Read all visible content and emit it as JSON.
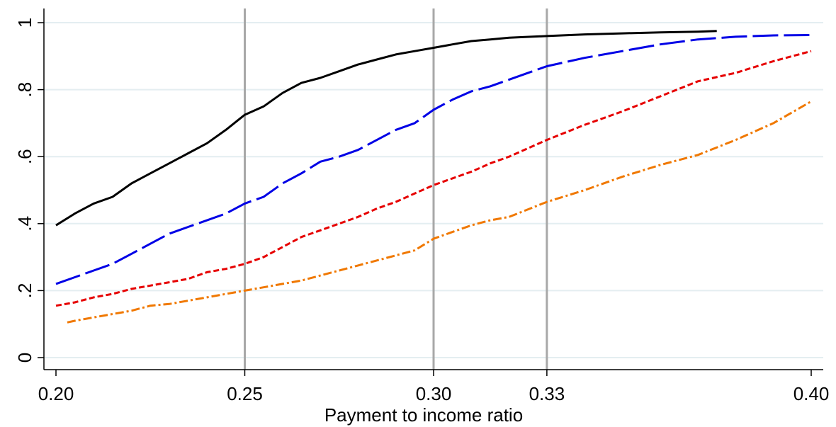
{
  "chart_data": {
    "type": "line",
    "title": "",
    "xlabel": "Payment to income ratio",
    "ylabel": "",
    "xlim": [
      0.2,
      0.4
    ],
    "ylim": [
      0,
      1
    ],
    "x_ticks": [
      {
        "value": 0.2,
        "label": "0.20"
      },
      {
        "value": 0.25,
        "label": "0.25"
      },
      {
        "value": 0.3,
        "label": "0.30"
      },
      {
        "value": 0.33,
        "label": "0.33"
      },
      {
        "value": 0.4,
        "label": "0.40"
      }
    ],
    "y_ticks": [
      {
        "value": 0,
        "label": "0"
      },
      {
        "value": 0.2,
        "label": ".2"
      },
      {
        "value": 0.4,
        "label": ".4"
      },
      {
        "value": 0.6,
        "label": ".6"
      },
      {
        "value": 0.8,
        "label": ".8"
      },
      {
        "value": 1,
        "label": "1"
      }
    ],
    "reference_lines_x": [
      0.25,
      0.3,
      0.33
    ],
    "grid": true,
    "legend": "none",
    "series": [
      {
        "color": "#000000",
        "dash": "solid",
        "x": [
          0.2,
          0.205,
          0.21,
          0.215,
          0.22,
          0.225,
          0.23,
          0.235,
          0.24,
          0.245,
          0.25,
          0.255,
          0.26,
          0.265,
          0.27,
          0.275,
          0.28,
          0.285,
          0.29,
          0.295,
          0.3,
          0.305,
          0.31,
          0.315,
          0.32,
          0.33,
          0.34,
          0.35,
          0.36,
          0.37,
          0.375
        ],
        "y": [
          0.395,
          0.43,
          0.46,
          0.48,
          0.52,
          0.55,
          0.58,
          0.61,
          0.64,
          0.68,
          0.725,
          0.75,
          0.79,
          0.82,
          0.835,
          0.855,
          0.875,
          0.89,
          0.905,
          0.915,
          0.925,
          0.935,
          0.945,
          0.95,
          0.955,
          0.96,
          0.965,
          0.968,
          0.971,
          0.973,
          0.975
        ]
      },
      {
        "color": "#0000e6",
        "dash": "long-dash",
        "x": [
          0.2,
          0.205,
          0.21,
          0.215,
          0.22,
          0.225,
          0.23,
          0.235,
          0.24,
          0.245,
          0.25,
          0.255,
          0.26,
          0.265,
          0.27,
          0.275,
          0.28,
          0.285,
          0.29,
          0.295,
          0.3,
          0.305,
          0.31,
          0.315,
          0.32,
          0.33,
          0.34,
          0.35,
          0.36,
          0.37,
          0.38,
          0.39,
          0.4
        ],
        "y": [
          0.22,
          0.24,
          0.26,
          0.28,
          0.31,
          0.34,
          0.37,
          0.39,
          0.41,
          0.43,
          0.46,
          0.48,
          0.52,
          0.55,
          0.585,
          0.6,
          0.62,
          0.65,
          0.68,
          0.7,
          0.74,
          0.77,
          0.795,
          0.81,
          0.83,
          0.87,
          0.895,
          0.915,
          0.935,
          0.95,
          0.958,
          0.962,
          0.963
        ]
      },
      {
        "color": "#e60000",
        "dash": "short-dash",
        "x": [
          0.2,
          0.205,
          0.21,
          0.215,
          0.22,
          0.225,
          0.23,
          0.235,
          0.24,
          0.245,
          0.25,
          0.255,
          0.26,
          0.265,
          0.27,
          0.275,
          0.28,
          0.285,
          0.29,
          0.295,
          0.3,
          0.305,
          0.31,
          0.315,
          0.32,
          0.33,
          0.34,
          0.35,
          0.36,
          0.37,
          0.38,
          0.39,
          0.4
        ],
        "y": [
          0.155,
          0.165,
          0.18,
          0.19,
          0.205,
          0.215,
          0.225,
          0.235,
          0.255,
          0.265,
          0.28,
          0.3,
          0.33,
          0.36,
          0.38,
          0.4,
          0.42,
          0.445,
          0.465,
          0.49,
          0.515,
          0.535,
          0.555,
          0.58,
          0.6,
          0.65,
          0.695,
          0.735,
          0.78,
          0.825,
          0.85,
          0.885,
          0.915
        ]
      },
      {
        "color": "#f07800",
        "dash": "dash-dot",
        "x": [
          0.203,
          0.205,
          0.21,
          0.215,
          0.22,
          0.225,
          0.23,
          0.235,
          0.24,
          0.245,
          0.25,
          0.255,
          0.26,
          0.265,
          0.27,
          0.275,
          0.28,
          0.285,
          0.29,
          0.295,
          0.3,
          0.305,
          0.31,
          0.315,
          0.32,
          0.33,
          0.34,
          0.35,
          0.36,
          0.37,
          0.38,
          0.39,
          0.4
        ],
        "y": [
          0.105,
          0.11,
          0.12,
          0.13,
          0.14,
          0.155,
          0.16,
          0.17,
          0.18,
          0.19,
          0.2,
          0.21,
          0.22,
          0.23,
          0.245,
          0.26,
          0.275,
          0.29,
          0.305,
          0.32,
          0.355,
          0.375,
          0.395,
          0.41,
          0.42,
          0.465,
          0.5,
          0.54,
          0.575,
          0.605,
          0.65,
          0.7,
          0.765
        ]
      }
    ]
  }
}
